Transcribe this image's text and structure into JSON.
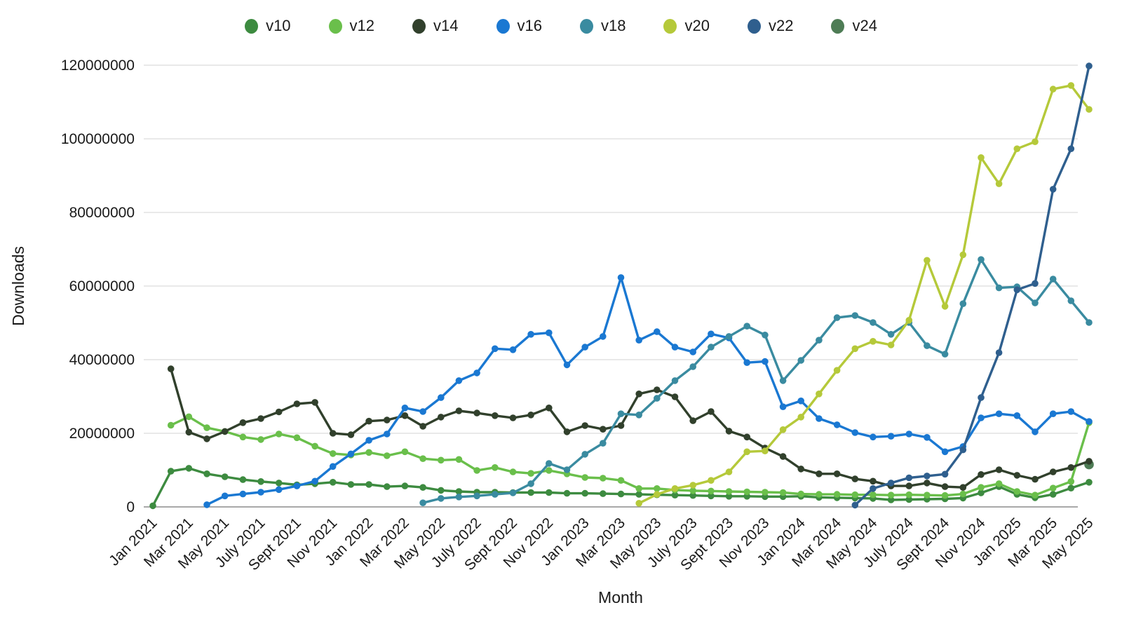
{
  "page": {
    "background": "#ffffff"
  },
  "chart_data": {
    "type": "line",
    "title": "",
    "xlabel": "Month",
    "ylabel": "Downloads",
    "ylim": [
      0,
      120000000
    ],
    "y_ticks": [
      0,
      20000000,
      40000000,
      60000000,
      80000000,
      100000000,
      120000000
    ],
    "x_tick_labels": [
      "Jan 2021",
      "Mar 2021",
      "May 2021",
      "July 2021",
      "Sept 2021",
      "Nov 2021",
      "Jan 2022",
      "Mar 2022",
      "May 2022",
      "July 2022",
      "Sept 2022",
      "Nov 2022",
      "Jan 2023",
      "Mar 2023",
      "May 2023",
      "July 2023",
      "Sept 2023",
      "Nov 2023",
      "Jan 2024",
      "Mar 2024",
      "May 2024",
      "July 2024",
      "Sept 2024",
      "Nov 2024",
      "Jan 2025",
      "Mar 2025",
      "May 2025"
    ],
    "x_tick_every": 2,
    "n_points": 53,
    "grid": "horizontal",
    "legend_position": "top",
    "colors": {
      "grid_line": "#e2e2e2",
      "axis_line": "#8c8c8c",
      "text": "#1a1a1a"
    },
    "series": [
      {
        "name": "v10",
        "color": "#3d8b40",
        "values": [
          300000,
          9700000,
          10500000,
          9000000,
          8200000,
          7400000,
          6900000,
          6500000,
          6000000,
          6300000,
          6700000,
          6100000,
          6100000,
          5500000,
          5700000,
          5300000,
          4500000,
          4200000,
          4000000,
          4000000,
          3900000,
          3900000,
          3900000,
          3700000,
          3700000,
          3600000,
          3500000,
          3400000,
          3300000,
          3200000,
          3100000,
          3000000,
          2900000,
          2900000,
          2800000,
          2800000,
          2900000,
          2600000,
          2500000,
          2400000,
          2300000,
          1900000,
          2000000,
          2100000,
          2200000,
          2400000,
          3800000,
          5500000,
          3400000,
          2500000,
          3400000,
          5100000,
          6700000
        ]
      },
      {
        "name": "v12",
        "color": "#6abf4b",
        "values": [
          null,
          22200000,
          24500000,
          21500000,
          20500000,
          19000000,
          18300000,
          19800000,
          18800000,
          16500000,
          14500000,
          14100000,
          14800000,
          13900000,
          15000000,
          13100000,
          12700000,
          12900000,
          9900000,
          10700000,
          9500000,
          9100000,
          9900000,
          9000000,
          8000000,
          7800000,
          7200000,
          5000000,
          5000000,
          4600000,
          4400000,
          4300000,
          4200000,
          4100000,
          4000000,
          3900000,
          3500000,
          3400000,
          3400000,
          3300000,
          3300000,
          3200000,
          3300000,
          3200000,
          3100000,
          3500000,
          5300000,
          6300000,
          4200000,
          3200000,
          5100000,
          6900000,
          22900000
        ]
      },
      {
        "name": "v14",
        "color": "#31402c",
        "values": [
          null,
          37500000,
          20300000,
          18500000,
          20500000,
          22900000,
          24000000,
          25800000,
          28000000,
          28400000,
          20000000,
          19600000,
          23300000,
          23600000,
          24800000,
          21900000,
          24400000,
          26100000,
          25500000,
          24800000,
          24200000,
          25000000,
          26900000,
          20400000,
          22100000,
          21100000,
          22100000,
          30700000,
          31800000,
          29900000,
          23400000,
          25900000,
          20600000,
          19000000,
          16000000,
          13700000,
          10300000,
          9000000,
          9000000,
          7600000,
          7000000,
          5700000,
          5700000,
          6500000,
          5500000,
          5300000,
          8800000,
          10100000,
          8600000,
          7500000,
          9500000,
          10700000,
          12400000
        ]
      },
      {
        "name": "v16",
        "color": "#1a78d2",
        "values": [
          null,
          null,
          null,
          600000,
          3000000,
          3500000,
          4000000,
          4700000,
          5700000,
          7000000,
          11000000,
          14400000,
          18100000,
          19800000,
          26900000,
          25900000,
          29700000,
          34300000,
          36400000,
          43000000,
          42700000,
          46900000,
          47300000,
          38600000,
          43400000,
          46300000,
          62300000,
          45300000,
          47600000,
          43400000,
          42100000,
          47000000,
          45900000,
          39200000,
          39500000,
          27200000,
          28800000,
          24000000,
          22300000,
          20200000,
          19000000,
          19200000,
          19800000,
          18900000,
          15000000,
          16400000,
          24200000,
          25300000,
          24800000,
          20400000,
          25300000,
          25900000,
          23200000
        ]
      },
      {
        "name": "v18",
        "color": "#3a8ba0",
        "values": [
          null,
          null,
          null,
          null,
          null,
          null,
          null,
          null,
          null,
          null,
          null,
          null,
          null,
          null,
          null,
          1100000,
          2300000,
          2700000,
          3000000,
          3400000,
          3800000,
          6300000,
          11800000,
          10100000,
          14300000,
          17300000,
          25300000,
          25000000,
          29500000,
          34300000,
          38100000,
          43400000,
          46300000,
          49100000,
          46700000,
          34300000,
          39800000,
          45300000,
          51400000,
          52000000,
          50100000,
          46900000,
          50100000,
          43800000,
          41500000,
          55200000,
          67200000,
          59500000,
          59800000,
          55400000,
          61900000,
          56000000,
          50100000
        ]
      },
      {
        "name": "v20",
        "color": "#b5c93a",
        "values": [
          null,
          null,
          null,
          null,
          null,
          null,
          null,
          null,
          null,
          null,
          null,
          null,
          null,
          null,
          null,
          null,
          null,
          null,
          null,
          null,
          null,
          null,
          null,
          null,
          null,
          null,
          null,
          1000000,
          3400000,
          5000000,
          5900000,
          7200000,
          9500000,
          15000000,
          15200000,
          21000000,
          24400000,
          30700000,
          37100000,
          43000000,
          45000000,
          44000000,
          50700000,
          67000000,
          54500000,
          68500000,
          94900000,
          87800000,
          97300000,
          99200000,
          113500000,
          114500000,
          108000000
        ]
      },
      {
        "name": "v22",
        "color": "#2f5f8e",
        "values": [
          null,
          null,
          null,
          null,
          null,
          null,
          null,
          null,
          null,
          null,
          null,
          null,
          null,
          null,
          null,
          null,
          null,
          null,
          null,
          null,
          null,
          null,
          null,
          null,
          null,
          null,
          null,
          null,
          null,
          null,
          null,
          null,
          null,
          null,
          null,
          null,
          null,
          null,
          null,
          500000,
          5000000,
          6500000,
          7900000,
          8400000,
          8900000,
          15500000,
          29700000,
          41900000,
          59000000,
          60700000,
          86300000,
          97300000,
          119800000
        ]
      },
      {
        "name": "v24",
        "color": "#4e7c55",
        "values": [
          null,
          null,
          null,
          null,
          null,
          null,
          null,
          null,
          null,
          null,
          null,
          null,
          null,
          null,
          null,
          null,
          null,
          null,
          null,
          null,
          null,
          null,
          null,
          null,
          null,
          null,
          null,
          null,
          null,
          null,
          null,
          null,
          null,
          null,
          null,
          null,
          null,
          null,
          null,
          null,
          null,
          null,
          null,
          null,
          null,
          null,
          null,
          null,
          null,
          null,
          null,
          null,
          11500000
        ]
      }
    ]
  }
}
